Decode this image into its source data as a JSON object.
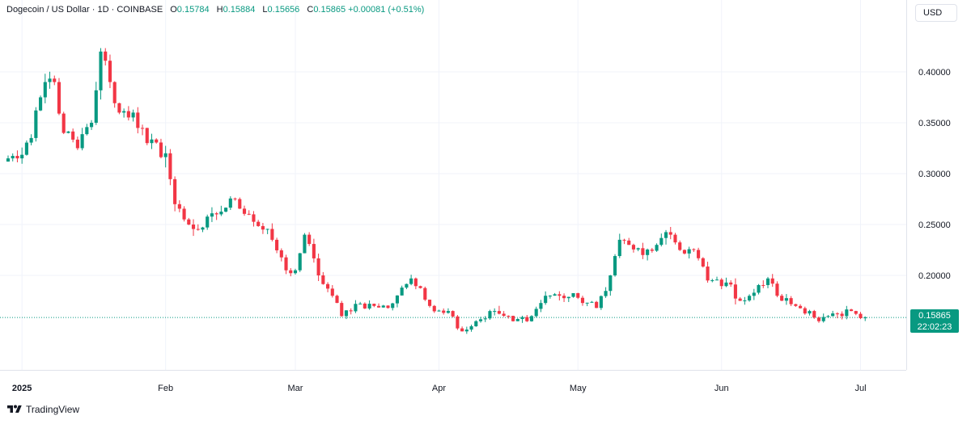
{
  "legend": {
    "symbol": "Dogecoin / US Dollar · 1D · COINBASE",
    "o_label": "O",
    "o_value": "0.15784",
    "h_label": "H",
    "h_value": "0.15884",
    "l_label": "L",
    "l_value": "0.15656",
    "c_label": "C",
    "c_value": "0.15865",
    "change": "+0.00081 (+0.51%)"
  },
  "currency": "USD",
  "last_price": {
    "price": "0.15865",
    "countdown": "22:02:23"
  },
  "brand": {
    "name": "TradingView"
  },
  "colors": {
    "up": "#089981",
    "down": "#f23645",
    "grid": "#f0f3fa",
    "axis_text": "#131722"
  },
  "chart_data": {
    "type": "candlestick",
    "title": "Dogecoin / US Dollar · 1D · COINBASE",
    "ylim": [
      0.115,
      0.45
    ],
    "y_ticks": [
      0.2,
      0.25,
      0.3,
      0.35,
      0.4
    ],
    "y_tick_labels": [
      "0.20000",
      "0.25000",
      "0.30000",
      "0.35000",
      "0.40000"
    ],
    "x_range": [
      "2024-12-29",
      "2025-07-07"
    ],
    "x_ticks": [
      {
        "date": "2025-01-01",
        "label": "2025",
        "bold": true
      },
      {
        "date": "2025-02-01",
        "label": "Feb"
      },
      {
        "date": "2025-03-01",
        "label": "Mar"
      },
      {
        "date": "2025-04-01",
        "label": "Apr"
      },
      {
        "date": "2025-05-01",
        "label": "May"
      },
      {
        "date": "2025-06-01",
        "label": "Jun"
      },
      {
        "date": "2025-07-01",
        "label": "Jul"
      }
    ],
    "grid": true,
    "last_close": 0.15865,
    "close_anchors": [
      [
        "2024-12-29",
        0.315
      ],
      [
        "2024-12-31",
        0.315
      ],
      [
        "2025-01-03",
        0.335
      ],
      [
        "2025-01-06",
        0.39
      ],
      [
        "2025-01-08",
        0.39
      ],
      [
        "2025-01-10",
        0.34
      ],
      [
        "2025-01-13",
        0.325
      ],
      [
        "2025-01-16",
        0.35
      ],
      [
        "2025-01-18",
        0.42
      ],
      [
        "2025-01-20",
        0.39
      ],
      [
        "2025-01-22",
        0.36
      ],
      [
        "2025-01-25",
        0.36
      ],
      [
        "2025-01-28",
        0.33
      ],
      [
        "2025-02-01",
        0.32
      ],
      [
        "2025-02-03",
        0.27
      ],
      [
        "2025-02-05",
        0.255
      ],
      [
        "2025-02-08",
        0.245
      ],
      [
        "2025-02-12",
        0.26
      ],
      [
        "2025-02-16",
        0.275
      ],
      [
        "2025-02-19",
        0.26
      ],
      [
        "2025-02-24",
        0.235
      ],
      [
        "2025-02-27",
        0.205
      ],
      [
        "2025-03-01",
        0.205
      ],
      [
        "2025-03-03",
        0.24
      ],
      [
        "2025-03-06",
        0.2
      ],
      [
        "2025-03-09",
        0.18
      ],
      [
        "2025-03-11",
        0.16
      ],
      [
        "2025-03-14",
        0.172
      ],
      [
        "2025-03-18",
        0.17
      ],
      [
        "2025-03-21",
        0.168
      ],
      [
        "2025-03-24",
        0.188
      ],
      [
        "2025-03-26",
        0.197
      ],
      [
        "2025-03-30",
        0.17
      ],
      [
        "2025-04-03",
        0.165
      ],
      [
        "2025-04-06",
        0.145
      ],
      [
        "2025-04-09",
        0.155
      ],
      [
        "2025-04-13",
        0.165
      ],
      [
        "2025-04-17",
        0.155
      ],
      [
        "2025-04-21",
        0.16
      ],
      [
        "2025-04-24",
        0.18
      ],
      [
        "2025-04-27",
        0.18
      ],
      [
        "2025-05-01",
        0.178
      ],
      [
        "2025-05-05",
        0.168
      ],
      [
        "2025-05-08",
        0.2
      ],
      [
        "2025-05-10",
        0.235
      ],
      [
        "2025-05-12",
        0.23
      ],
      [
        "2025-05-15",
        0.22
      ],
      [
        "2025-05-18",
        0.23
      ],
      [
        "2025-05-21",
        0.24
      ],
      [
        "2025-05-23",
        0.225
      ],
      [
        "2025-05-26",
        0.225
      ],
      [
        "2025-05-29",
        0.195
      ],
      [
        "2025-06-02",
        0.193
      ],
      [
        "2025-06-05",
        0.175
      ],
      [
        "2025-06-08",
        0.183
      ],
      [
        "2025-06-11",
        0.197
      ],
      [
        "2025-06-13",
        0.18
      ],
      [
        "2025-06-17",
        0.17
      ],
      [
        "2025-06-20",
        0.165
      ],
      [
        "2025-06-22",
        0.155
      ],
      [
        "2025-06-24",
        0.16
      ],
      [
        "2025-06-27",
        0.16
      ],
      [
        "2025-06-29",
        0.165
      ],
      [
        "2025-07-01",
        0.158
      ],
      [
        "2025-07-02",
        0.1587
      ]
    ],
    "up_color": "#089981",
    "down_color": "#f23645"
  }
}
